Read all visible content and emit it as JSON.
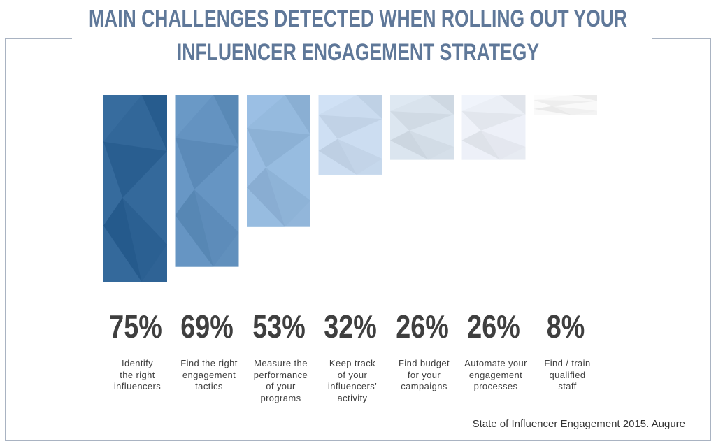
{
  "title_lines": [
    "MAIN CHALLENGES DETECTED WHEN ROLLING OUT YOUR",
    "INFLUENCER ENGAGEMENT STRATEGY"
  ],
  "source": "State of Influencer Engagement 2015. Augure",
  "colors": {
    "title": "#5f7899",
    "frame": "#a9b3c2",
    "bars": [
      "#2f6395",
      "#6190bd",
      "#92b6da",
      "#c6d8ec",
      "#d5dfe9",
      "#e7ebf2",
      "#f3f3f3"
    ]
  },
  "chart_data": {
    "type": "bar",
    "title": "MAIN CHALLENGES DETECTED WHEN ROLLING OUT YOUR INFLUENCER ENGAGEMENT STRATEGY",
    "categories": [
      "Identify the right influencers",
      "Find the right engagement tactics",
      "Measure the performance of your programs",
      "Keep track of your influencers' activity",
      "Find budget for your campaigns",
      "Automate your engagement processes",
      "Find / train qualified staff"
    ],
    "values": [
      75,
      69,
      53,
      32,
      26,
      26,
      8
    ],
    "value_labels": [
      "75%",
      "69%",
      "53%",
      "32%",
      "26%",
      "26%",
      "8%"
    ],
    "category_labels": [
      "Identify\nthe right\ninfluencers",
      "Find the right\nengagement\ntactics",
      "Measure the\nperformance\nof your\nprograms",
      "Keep track\nof your\ninfluencers'\nactivity",
      "Find budget\nfor your\ncampaigns",
      "Automate your\nengagement\nprocesses",
      "Find / train\nqualified\nstaff"
    ],
    "xlabel": "",
    "ylabel": "",
    "ylim": [
      0,
      100
    ],
    "grid": false,
    "legend": "none"
  }
}
